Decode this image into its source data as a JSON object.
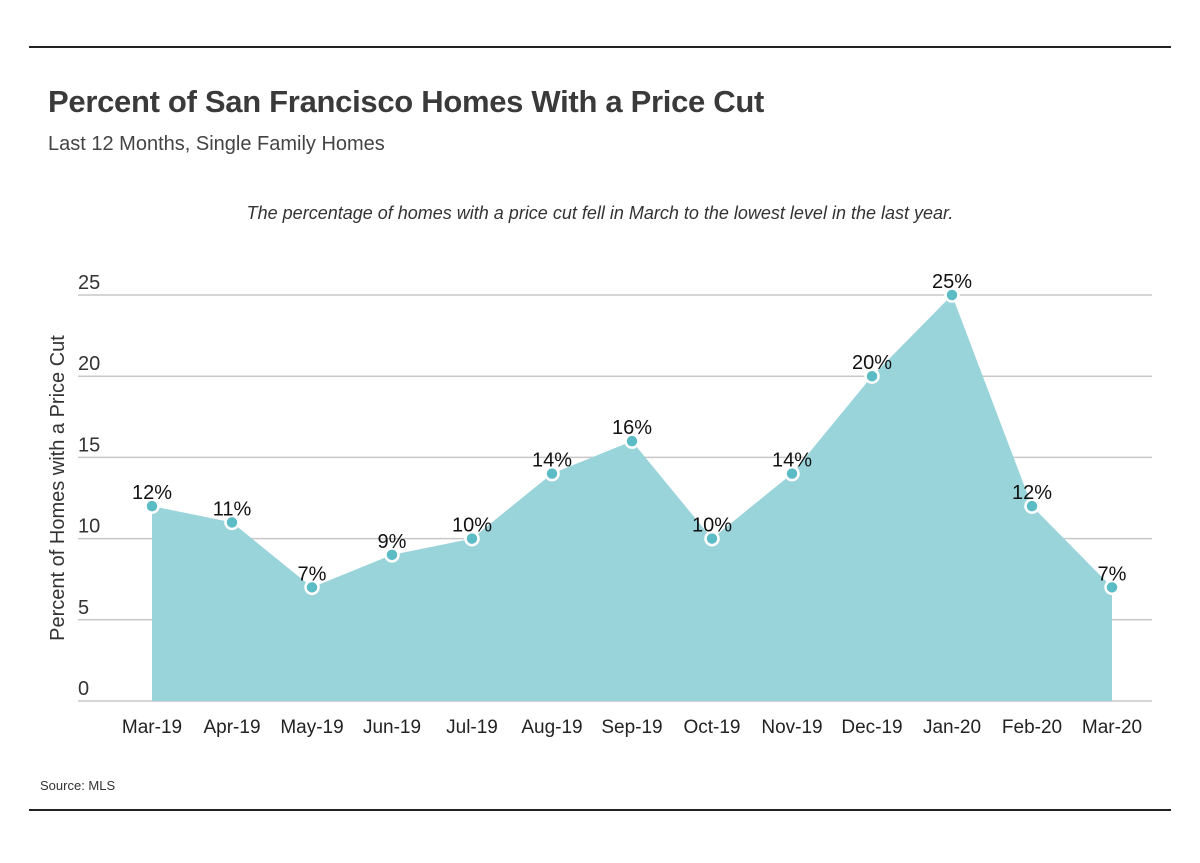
{
  "header": {
    "title": "Percent of San Francisco Homes With a Price Cut",
    "subtitle": "Last 12 Months, Single Family Homes"
  },
  "annotation": "The percentage of homes with a price cut fell in March to the lowest level in the last year.",
  "source": "Source:  MLS",
  "colors": {
    "area_fill": "#9ad4db",
    "marker_fill": "#5cbcc6",
    "marker_stroke": "#ffffff",
    "gridline": "#c8c8c8",
    "rule": "#222222"
  },
  "chart_data": {
    "type": "area",
    "categories": [
      "Mar-19",
      "Apr-19",
      "May-19",
      "Jun-19",
      "Jul-19",
      "Aug-19",
      "Sep-19",
      "Oct-19",
      "Nov-19",
      "Dec-19",
      "Jan-20",
      "Feb-20",
      "Mar-20"
    ],
    "values": [
      12,
      11,
      7,
      9,
      10,
      14,
      16,
      10,
      14,
      20,
      25,
      12,
      7
    ],
    "data_labels": [
      "12%",
      "11%",
      "7%",
      "9%",
      "10%",
      "14%",
      "16%",
      "10%",
      "14%",
      "20%",
      "25%",
      "12%",
      "7%"
    ],
    "ylabel": "Percent of Homes with a Price Cut",
    "xlabel": "",
    "ylim": [
      0,
      25
    ],
    "yticks": [
      0,
      5,
      10,
      15,
      20,
      25
    ],
    "grid": true,
    "legend": "none"
  }
}
